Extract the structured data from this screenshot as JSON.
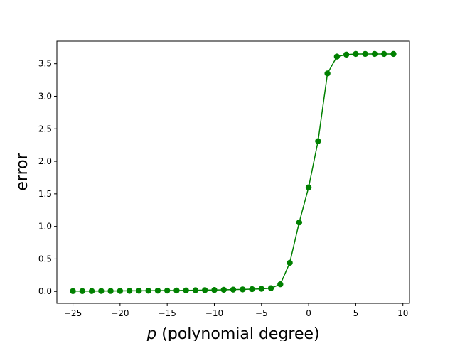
{
  "chart_data": {
    "type": "line",
    "title": "",
    "xlabel_var": "p",
    "xlabel_rest": " (polynomial degree)",
    "ylabel": "error",
    "xlim": [
      -26.7,
      10.7
    ],
    "ylim": [
      -0.183,
      3.846
    ],
    "xticks": [
      -25,
      -20,
      -15,
      -10,
      -5,
      0,
      5,
      10
    ],
    "xtick_labels": [
      "−25",
      "−20",
      "−15",
      "−10",
      "−5",
      "0",
      "5",
      "10"
    ],
    "yticks": [
      0.0,
      0.5,
      1.0,
      1.5,
      2.0,
      2.5,
      3.0,
      3.5
    ],
    "ytick_labels": [
      "0.0",
      "0.5",
      "1.0",
      "1.5",
      "2.0",
      "2.5",
      "3.0",
      "3.5"
    ],
    "grid": false,
    "series": [
      {
        "color": "#008000",
        "marker": "circle",
        "x": [
          -25,
          -24,
          -23,
          -22,
          -21,
          -20,
          -19,
          -18,
          -17,
          -16,
          -15,
          -14,
          -13,
          -12,
          -11,
          -10,
          -9,
          -8,
          -7,
          -6,
          -5,
          -4,
          -3,
          -2,
          -1,
          0,
          1,
          2,
          3,
          4,
          5,
          6,
          7,
          8,
          9
        ],
        "y": [
          0.005,
          0.005,
          0.006,
          0.007,
          0.007,
          0.008,
          0.009,
          0.01,
          0.011,
          0.012,
          0.013,
          0.014,
          0.016,
          0.018,
          0.02,
          0.022,
          0.025,
          0.028,
          0.031,
          0.035,
          0.04,
          0.05,
          0.11,
          0.44,
          1.06,
          1.6,
          2.31,
          3.35,
          3.61,
          3.64,
          3.65,
          3.65,
          3.65,
          3.65,
          3.65
        ]
      }
    ]
  }
}
